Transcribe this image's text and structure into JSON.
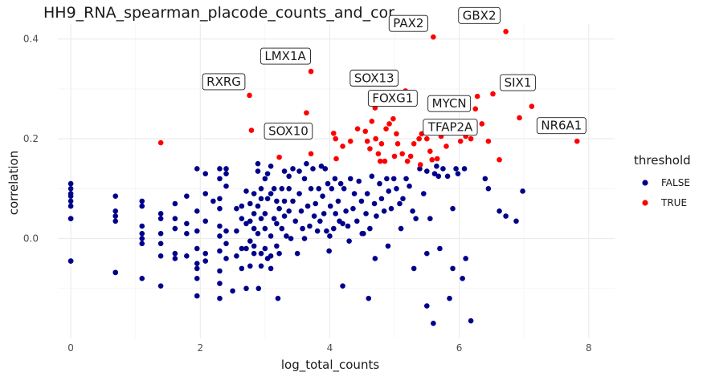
{
  "chart_data": {
    "type": "scatter",
    "title": "HH9_RNA_spearman_placode_counts_and_cor",
    "xlabel": "log_total_counts",
    "ylabel": "correlation",
    "xlim": [
      -0.2,
      8.4
    ],
    "ylim": [
      -0.2,
      0.43
    ],
    "x_ticks": [
      0,
      2,
      4,
      6,
      8
    ],
    "y_ticks": [
      0.0,
      0.2,
      0.4
    ],
    "x_tick_labels": [
      "0",
      "2",
      "4",
      "6",
      "8"
    ],
    "y_tick_labels": [
      "0.0",
      "0.2",
      "0.4"
    ],
    "grid": true,
    "legend": {
      "title": "threshold",
      "position": "right",
      "entries": [
        {
          "label": "FALSE",
          "color": "#00008b"
        },
        {
          "label": "TRUE",
          "color": "#ff0000"
        }
      ]
    },
    "series": [
      {
        "name": "FALSE",
        "color": "#00008b",
        "points": [
          [
            0,
            0.11
          ],
          [
            0,
            0.1
          ],
          [
            0,
            0.09
          ],
          [
            0,
            0.085
          ],
          [
            0,
            0.075
          ],
          [
            0,
            0.065
          ],
          [
            0,
            0.04
          ],
          [
            0,
            0.04
          ],
          [
            0,
            -0.045
          ],
          [
            0,
            -0.045
          ],
          [
            0.69,
            0.085
          ],
          [
            0.69,
            0.055
          ],
          [
            0.69,
            0.045
          ],
          [
            0.69,
            0.035
          ],
          [
            0.69,
            -0.068
          ],
          [
            0.69,
            -0.068
          ],
          [
            1.1,
            0.075
          ],
          [
            1.1,
            0.065
          ],
          [
            1.1,
            0.025
          ],
          [
            1.1,
            0.01
          ],
          [
            1.1,
            0.0
          ],
          [
            1.1,
            -0.01
          ],
          [
            1.1,
            -0.08
          ],
          [
            1.39,
            0.05
          ],
          [
            1.39,
            0.04
          ],
          [
            1.39,
            0.01
          ],
          [
            1.39,
            -0.01
          ],
          [
            1.39,
            -0.035
          ],
          [
            1.39,
            -0.095
          ],
          [
            1.61,
            0.07
          ],
          [
            1.61,
            0.04
          ],
          [
            1.61,
            0.02
          ],
          [
            1.61,
            -0.03
          ],
          [
            1.61,
            -0.04
          ],
          [
            1.79,
            0.085
          ],
          [
            1.79,
            0.03
          ],
          [
            1.79,
            0.01
          ],
          [
            1.79,
            -0.035
          ],
          [
            1.95,
            0.14
          ],
          [
            1.95,
            0.055
          ],
          [
            1.95,
            0.015
          ],
          [
            1.95,
            -0.02
          ],
          [
            1.95,
            -0.05
          ],
          [
            1.95,
            -0.06
          ],
          [
            1.95,
            -0.08
          ],
          [
            2.08,
            0.13
          ],
          [
            2.08,
            0.09
          ],
          [
            2.08,
            0.035
          ],
          [
            2.08,
            -0.03
          ],
          [
            2.08,
            -0.045
          ],
          [
            2.2,
            0.075
          ],
          [
            2.3,
            0.14
          ],
          [
            2.3,
            0.12
          ],
          [
            2.3,
            0.08
          ],
          [
            2.3,
            0.06
          ],
          [
            2.3,
            0.025
          ],
          [
            2.3,
            0.005
          ],
          [
            2.3,
            -0.025
          ],
          [
            2.3,
            -0.065
          ],
          [
            2.3,
            -0.09
          ],
          [
            2.3,
            -0.12
          ],
          [
            2.4,
            0.14
          ],
          [
            2.4,
            0.13
          ],
          [
            2.4,
            0.105
          ],
          [
            2.4,
            0.015
          ],
          [
            2.4,
            -0.01
          ],
          [
            2.4,
            -0.04
          ],
          [
            2.56,
            0.06
          ],
          [
            2.56,
            0.015
          ],
          [
            2.56,
            -0.035
          ],
          [
            2.64,
            0.065
          ],
          [
            2.64,
            0.04
          ],
          [
            2.64,
            -0.02
          ],
          [
            2.64,
            -0.06
          ],
          [
            2.71,
            0.095
          ],
          [
            2.71,
            0.03
          ],
          [
            2.71,
            -0.02
          ],
          [
            2.71,
            -0.1
          ],
          [
            2.77,
            0.07
          ],
          [
            2.77,
            0.035
          ],
          [
            2.77,
            -0.005
          ],
          [
            2.77,
            -0.055
          ],
          [
            2.83,
            0.09
          ],
          [
            2.83,
            0.05
          ],
          [
            2.83,
            0.02
          ],
          [
            2.83,
            -0.015
          ],
          [
            2.83,
            -0.03
          ],
          [
            2.89,
            0.15
          ],
          [
            2.89,
            0.135
          ],
          [
            2.89,
            0.065
          ],
          [
            2.89,
            0.01
          ],
          [
            2.94,
            0.1
          ],
          [
            2.94,
            0.08
          ],
          [
            2.94,
            0.04
          ],
          [
            2.94,
            -0.03
          ],
          [
            2.94,
            -0.055
          ],
          [
            3.0,
            0.12
          ],
          [
            3.0,
            0.05
          ],
          [
            3.0,
            0.02
          ],
          [
            3.0,
            -0.02
          ],
          [
            3.04,
            0.13
          ],
          [
            3.04,
            0.08
          ],
          [
            3.04,
            -0.04
          ],
          [
            3.09,
            0.145
          ],
          [
            3.09,
            0.09
          ],
          [
            3.09,
            0.005
          ],
          [
            3.09,
            -0.035
          ],
          [
            3.09,
            -0.06
          ],
          [
            3.14,
            0.1
          ],
          [
            3.14,
            0.04
          ],
          [
            3.18,
            0.075
          ],
          [
            3.18,
            0.03
          ],
          [
            3.18,
            -0.015
          ],
          [
            3.22,
            0.06
          ],
          [
            3.22,
            -0.03
          ],
          [
            3.26,
            0.1
          ],
          [
            3.26,
            0.02
          ],
          [
            3.3,
            0.135
          ],
          [
            3.3,
            0.075
          ],
          [
            3.3,
            0.045
          ],
          [
            3.33,
            0.005
          ],
          [
            3.37,
            0.125
          ],
          [
            3.37,
            0.1
          ],
          [
            3.37,
            0.055
          ],
          [
            3.4,
            0.0
          ],
          [
            3.43,
            0.14
          ],
          [
            3.43,
            0.075
          ],
          [
            3.47,
            0.035
          ],
          [
            3.5,
            -0.03
          ],
          [
            3.53,
            0.135
          ],
          [
            3.53,
            0.09
          ],
          [
            3.56,
            0.055
          ],
          [
            3.58,
            0.02
          ],
          [
            3.61,
            0.12
          ],
          [
            3.61,
            0.0
          ],
          [
            3.64,
            0.15
          ],
          [
            3.66,
            0.065
          ],
          [
            3.69,
            0.025
          ],
          [
            3.71,
            0.1
          ],
          [
            3.74,
            0.14
          ],
          [
            3.76,
            0.045
          ],
          [
            3.78,
            0.07
          ],
          [
            3.81,
            0.015
          ],
          [
            3.83,
            0.1
          ],
          [
            3.85,
            0.035
          ],
          [
            3.87,
            0.145
          ],
          [
            3.89,
            0.085
          ],
          [
            3.91,
            0.05
          ],
          [
            3.93,
            0.14
          ],
          [
            3.95,
            0.015
          ],
          [
            3.97,
            0.11
          ],
          [
            3.99,
            -0.025
          ],
          [
            4.01,
            0.065
          ],
          [
            4.03,
            0.1
          ],
          [
            4.06,
            0.02
          ],
          [
            4.08,
            0.12
          ],
          [
            4.09,
            0.05
          ],
          [
            4.13,
            0.075
          ],
          [
            4.17,
            0.11
          ],
          [
            4.2,
            0.03
          ],
          [
            4.22,
            0.1
          ],
          [
            4.25,
            0.055
          ],
          [
            4.28,
            0.025
          ],
          [
            4.32,
            0.12
          ],
          [
            4.36,
            0.06
          ],
          [
            4.38,
            0.09
          ],
          [
            4.42,
            0.035
          ],
          [
            4.45,
            0.115
          ],
          [
            4.49,
            0.075
          ],
          [
            4.52,
            0.01
          ],
          [
            4.56,
            0.05
          ],
          [
            4.58,
            0.09
          ],
          [
            4.62,
            0.02
          ],
          [
            4.65,
            0.125
          ],
          [
            4.69,
            0.07
          ],
          [
            4.72,
            0.045
          ],
          [
            4.77,
            0.11
          ],
          [
            4.8,
            0.08
          ],
          [
            4.84,
            0.055
          ],
          [
            4.88,
            0.12
          ],
          [
            4.91,
            0.095
          ],
          [
            4.95,
            0.06
          ],
          [
            4.99,
            0.12
          ],
          [
            5.03,
            0.1
          ],
          [
            5.08,
            0.07
          ],
          [
            5.13,
            0.08
          ],
          [
            5.18,
            0.12
          ],
          [
            5.23,
            0.105
          ],
          [
            5.28,
            0.055
          ],
          [
            5.33,
            0.04
          ],
          [
            5.39,
            0.14
          ],
          [
            5.45,
            0.09
          ],
          [
            5.5,
            0.135
          ],
          [
            5.55,
            0.04
          ],
          [
            5.62,
            0.13
          ],
          [
            5.68,
            0.125
          ],
          [
            5.75,
            0.14
          ],
          [
            5.82,
            0.125
          ],
          [
            5.9,
            0.06
          ],
          [
            5.98,
            0.13
          ],
          [
            6.08,
            0.14
          ],
          [
            4.0,
            0.005
          ],
          [
            4.15,
            0.035
          ],
          [
            4.3,
            -0.005
          ],
          [
            4.5,
            0.01
          ],
          [
            4.7,
            -0.04
          ],
          [
            4.9,
            -0.015
          ],
          [
            5.1,
            0.02
          ],
          [
            5.3,
            -0.06
          ],
          [
            5.5,
            -0.03
          ],
          [
            5.7,
            -0.02
          ],
          [
            5.9,
            -0.06
          ],
          [
            6.1,
            -0.04
          ],
          [
            4.2,
            -0.095
          ],
          [
            4.6,
            -0.12
          ],
          [
            5.5,
            -0.135
          ],
          [
            5.6,
            -0.17
          ],
          [
            5.85,
            -0.12
          ],
          [
            6.05,
            -0.08
          ],
          [
            6.18,
            -0.165
          ],
          [
            6.45,
            0.1
          ],
          [
            6.62,
            0.055
          ],
          [
            6.72,
            0.045
          ],
          [
            6.88,
            0.035
          ],
          [
            6.98,
            0.095
          ],
          [
            3.2,
            -0.12
          ],
          [
            2.9,
            -0.1
          ],
          [
            2.5,
            -0.105
          ],
          [
            1.95,
            -0.115
          ],
          [
            5.65,
            0.145
          ],
          [
            5.95,
            0.14
          ],
          [
            6.4,
            0.12
          ]
        ]
      },
      {
        "name": "TRUE",
        "color": "#ff0000",
        "points": [
          [
            1.39,
            0.192
          ],
          [
            2.76,
            0.287
          ],
          [
            2.79,
            0.217
          ],
          [
            3.22,
            0.163
          ],
          [
            3.64,
            0.252
          ],
          [
            3.71,
            0.335
          ],
          [
            3.71,
            0.17
          ],
          [
            4.06,
            0.211
          ],
          [
            4.09,
            0.2
          ],
          [
            4.1,
            0.16
          ],
          [
            4.2,
            0.185
          ],
          [
            4.32,
            0.195
          ],
          [
            4.43,
            0.22
          ],
          [
            4.55,
            0.215
          ],
          [
            4.58,
            0.195
          ],
          [
            4.62,
            0.18
          ],
          [
            4.65,
            0.235
          ],
          [
            4.7,
            0.262
          ],
          [
            4.71,
            0.2
          ],
          [
            4.75,
            0.17
          ],
          [
            4.8,
            0.19
          ],
          [
            4.87,
            0.22
          ],
          [
            4.92,
            0.23
          ],
          [
            4.98,
            0.24
          ],
          [
            5.03,
            0.21
          ],
          [
            5.05,
            0.19
          ],
          [
            5.12,
            0.17
          ],
          [
            5.17,
            0.296
          ],
          [
            5.2,
            0.155
          ],
          [
            5.25,
            0.165
          ],
          [
            5.3,
            0.19
          ],
          [
            5.38,
            0.2
          ],
          [
            5.42,
            0.21
          ],
          [
            5.48,
            0.215
          ],
          [
            5.5,
            0.2
          ],
          [
            5.55,
            0.175
          ],
          [
            5.6,
            0.404
          ],
          [
            5.66,
            0.16
          ],
          [
            5.72,
            0.205
          ],
          [
            5.8,
            0.185
          ],
          [
            5.88,
            0.212
          ],
          [
            5.95,
            0.22
          ],
          [
            6.02,
            0.195
          ],
          [
            6.1,
            0.205
          ],
          [
            6.18,
            0.2
          ],
          [
            6.25,
            0.26
          ],
          [
            6.28,
            0.285
          ],
          [
            6.35,
            0.23
          ],
          [
            6.45,
            0.195
          ],
          [
            6.52,
            0.29
          ],
          [
            6.62,
            0.158
          ],
          [
            6.72,
            0.415
          ],
          [
            6.93,
            0.242
          ],
          [
            7.12,
            0.265
          ],
          [
            7.48,
            0.22
          ],
          [
            7.82,
            0.195
          ],
          [
            4.78,
            0.155
          ],
          [
            4.85,
            0.155
          ],
          [
            5.0,
            0.165
          ],
          [
            5.4,
            0.148
          ],
          [
            5.58,
            0.158
          ]
        ]
      }
    ],
    "annotations": [
      {
        "label": "RXRG",
        "x": 2.76,
        "y": 0.287
      },
      {
        "label": "LMX1A",
        "x": 3.71,
        "y": 0.335
      },
      {
        "label": "SOX10",
        "x": 2.79,
        "y": 0.217
      },
      {
        "label": "SOX13",
        "x": 5.17,
        "y": 0.296
      },
      {
        "label": "PAX2",
        "x": 5.6,
        "y": 0.404
      },
      {
        "label": "GBX2",
        "x": 6.72,
        "y": 0.415
      },
      {
        "label": "MYCN",
        "x": 6.28,
        "y": 0.285
      },
      {
        "label": "SIX1",
        "x": 6.52,
        "y": 0.29
      },
      {
        "label": "FOXG1",
        "x": 4.7,
        "y": 0.262
      },
      {
        "label": "TFAP2A",
        "x": 5.95,
        "y": 0.22
      },
      {
        "label": "NR6A1",
        "x": 7.48,
        "y": 0.22
      }
    ]
  }
}
